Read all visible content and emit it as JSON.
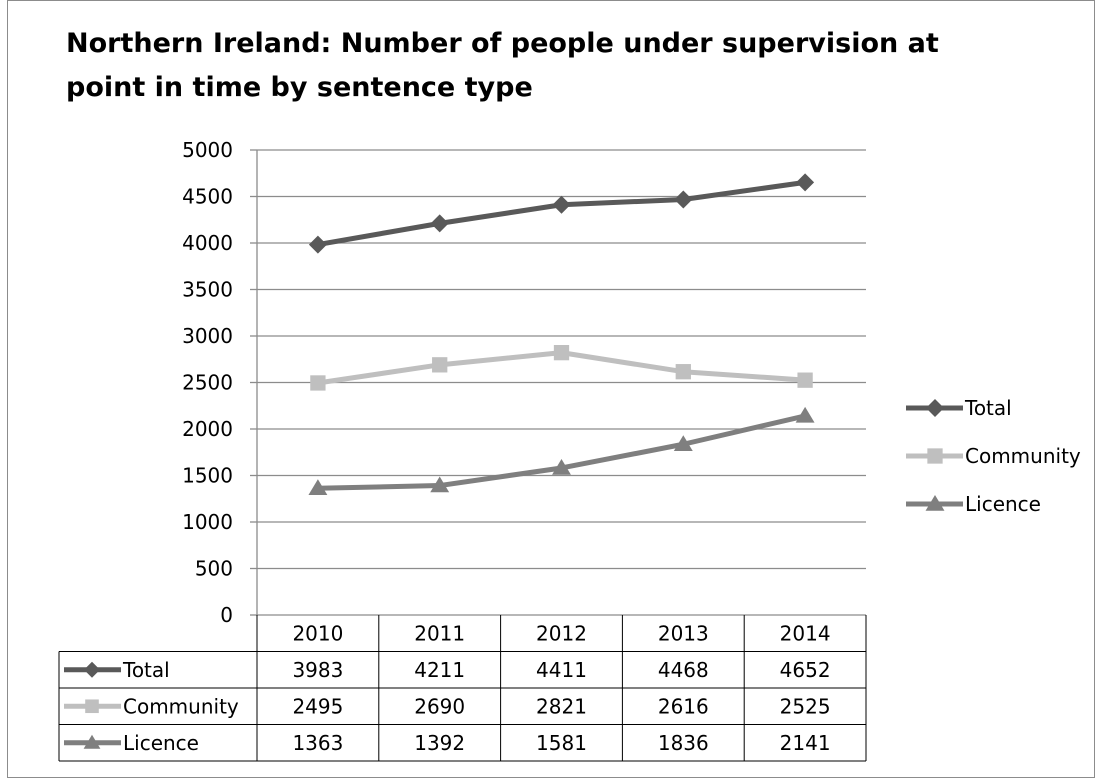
{
  "chart_data": {
    "type": "line",
    "title_lines": [
      "Northern Ireland: Number of people under supervision at",
      "point in time by sentence type"
    ],
    "categories": [
      "2010",
      "2011",
      "2012",
      "2013",
      "2014"
    ],
    "ylim": [
      0,
      5000
    ],
    "yticks": [
      0,
      500,
      1000,
      1500,
      2000,
      2500,
      3000,
      3500,
      4000,
      4500,
      5000
    ],
    "grid": "horizontal",
    "legend_position": "right",
    "data_table": true,
    "series": [
      {
        "name": "Total",
        "marker": "diamond",
        "color": "#595959",
        "values": [
          3983,
          4211,
          4411,
          4468,
          4652
        ]
      },
      {
        "name": "Community",
        "marker": "square",
        "color": "#bfbfbf",
        "values": [
          2495,
          2690,
          2821,
          2616,
          2525
        ]
      },
      {
        "name": "Licence",
        "marker": "triangle",
        "color": "#7f7f7f",
        "values": [
          1363,
          1392,
          1581,
          1836,
          2141
        ]
      }
    ]
  }
}
